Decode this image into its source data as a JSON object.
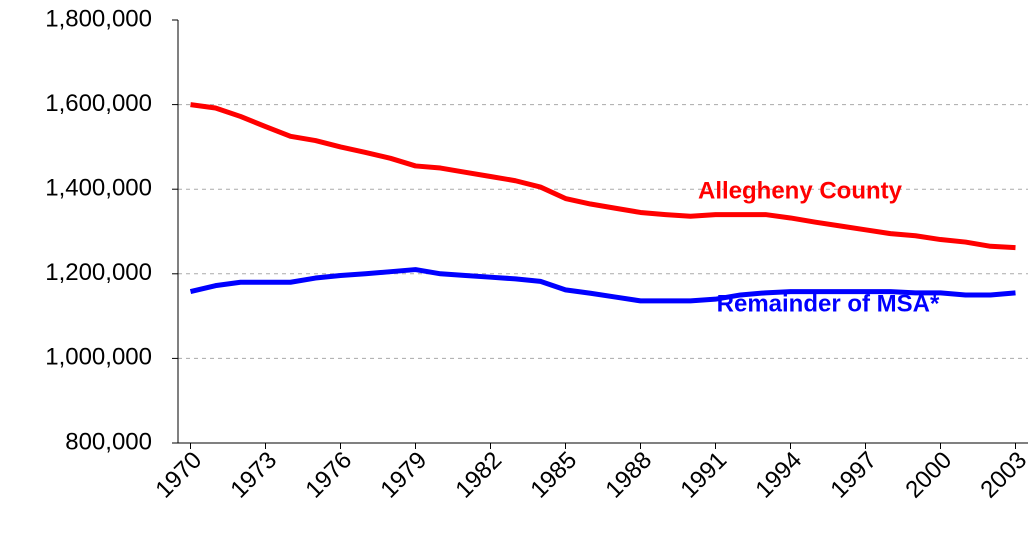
{
  "chart_data": {
    "type": "line",
    "x": [
      1970,
      1971,
      1972,
      1973,
      1974,
      1975,
      1976,
      1977,
      1978,
      1979,
      1980,
      1981,
      1982,
      1983,
      1984,
      1985,
      1986,
      1987,
      1988,
      1989,
      1990,
      1991,
      1992,
      1993,
      1994,
      1995,
      1996,
      1997,
      1998,
      1999,
      2000,
      2001,
      2002,
      2003
    ],
    "xlim": [
      1969.5,
      2003.5
    ],
    "xticks": [
      1970,
      1973,
      1976,
      1979,
      1982,
      1985,
      1988,
      1991,
      1994,
      1997,
      2000,
      2003
    ],
    "ylim": [
      800000,
      1800000
    ],
    "yticks": [
      {
        "value": 800000,
        "label": "800,000"
      },
      {
        "value": 1000000,
        "label": "1,000,000"
      },
      {
        "value": 1200000,
        "label": "1,200,000"
      },
      {
        "value": 1400000,
        "label": "1,400,000"
      },
      {
        "value": 1600000,
        "label": "1,600,000"
      },
      {
        "value": 1800000,
        "label": "1,800,000"
      }
    ],
    "grid": true,
    "series": [
      {
        "name": "Allegheny County",
        "color": "#ff0000",
        "values": [
          1600000,
          1592000,
          1572000,
          1548000,
          1525000,
          1515000,
          1500000,
          1487000,
          1473000,
          1455000,
          1450000,
          1440000,
          1430000,
          1420000,
          1405000,
          1378000,
          1365000,
          1355000,
          1345000,
          1340000,
          1336000,
          1340000,
          1340000,
          1340000,
          1332000,
          1322000,
          1313000,
          1304000,
          1295000,
          1290000,
          1281000,
          1275000,
          1265000,
          1262000
        ]
      },
      {
        "name": "Remainder of MSA*",
        "color": "#0000ff",
        "values": [
          1158000,
          1172000,
          1180000,
          1180000,
          1180000,
          1190000,
          1196000,
          1200000,
          1205000,
          1210000,
          1200000,
          1196000,
          1192000,
          1188000,
          1182000,
          1162000,
          1154000,
          1145000,
          1136000,
          1136000,
          1136000,
          1140000,
          1150000,
          1155000,
          1158000,
          1158000,
          1158000,
          1158000,
          1158000,
          1155000,
          1155000,
          1150000,
          1150000,
          1155000
        ]
      }
    ]
  }
}
